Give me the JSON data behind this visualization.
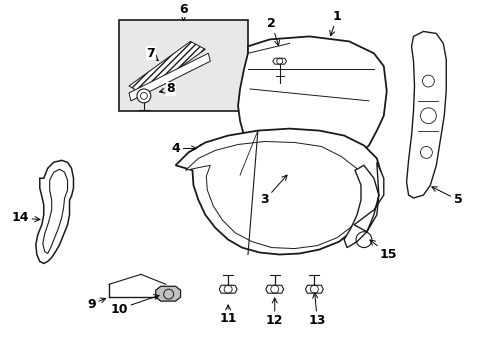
{
  "background_color": "#ffffff",
  "line_color": "#1a1a1a",
  "label_color": "#000000",
  "box_fill": "#e8e8e8",
  "figsize": [
    4.89,
    3.6
  ],
  "dpi": 100
}
